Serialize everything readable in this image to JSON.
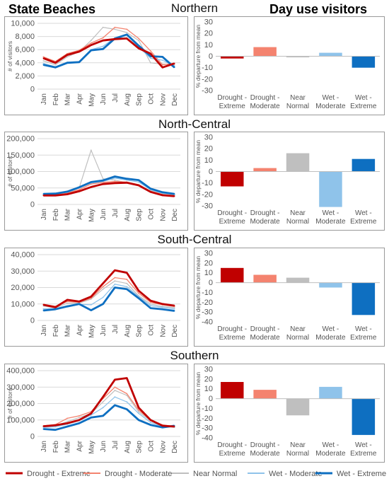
{
  "header": {
    "left_title": "State Beaches",
    "right_title": "Day use visitors"
  },
  "legend": [
    {
      "name": "Drought - Extreme",
      "color": "#c00000"
    },
    {
      "name": "Drought - Moderate",
      "color": "#f4836f"
    },
    {
      "name": "Near Normal",
      "color": "#bfbfbf"
    },
    {
      "name": "Wet -  Moderate",
      "color": "#8fc3ea"
    },
    {
      "name": "Wet - Extreme",
      "color": "#0e6fc1"
    }
  ],
  "chart_data": [
    {
      "type": "line",
      "region": "Northern",
      "title": "",
      "ylabel": "# of visitors",
      "categories": [
        "Jan",
        "Feb",
        "Mar",
        "Apr",
        "May",
        "Jun",
        "Jul",
        "Aug",
        "Sep",
        "Oct",
        "Nov",
        "Dec"
      ],
      "ylim": [
        0,
        10000
      ],
      "yticks": [
        0,
        2000,
        4000,
        6000,
        8000,
        10000
      ],
      "yticklabels": [
        "0",
        "2,000",
        "4,000",
        "6,000",
        "8,000",
        "10,000"
      ],
      "series": [
        {
          "name": "Drought - Extreme",
          "values": [
            4700,
            4000,
            5200,
            5700,
            6700,
            7400,
            7600,
            7700,
            6200,
            5400,
            3300,
            3900
          ]
        },
        {
          "name": "Drought - Moderate",
          "values": [
            4900,
            4200,
            5400,
            5900,
            7000,
            7800,
            9400,
            9100,
            7700,
            5800,
            3700,
            3900
          ]
        },
        {
          "name": "Near Normal",
          "values": [
            4300,
            3700,
            4900,
            5700,
            7400,
            9400,
            9100,
            8600,
            7400,
            4000,
            3800,
            3700
          ]
        },
        {
          "name": "Wet -  Moderate",
          "values": [
            3900,
            3400,
            4100,
            4200,
            6000,
            6500,
            7800,
            7800,
            6400,
            4700,
            4400,
            3500
          ]
        },
        {
          "name": "Wet - Extreme",
          "values": [
            3700,
            3300,
            4000,
            4100,
            5900,
            6100,
            7700,
            8300,
            6600,
            5000,
            4900,
            3300
          ]
        }
      ]
    },
    {
      "type": "bar",
      "region": "Northern",
      "title": "",
      "ylabel": "% departure from mean",
      "categories": [
        "Drought - Extreme",
        "Drought - Moderate",
        "Near Normal",
        "Wet - Moderate",
        "Wet - Extreme"
      ],
      "category_lines": [
        [
          "Drought -",
          "Extreme"
        ],
        [
          "Drought -",
          "Moderate"
        ],
        [
          "Near",
          "Normal"
        ],
        [
          "Wet -",
          "Moderate"
        ],
        [
          "Wet -",
          "Extreme"
        ]
      ],
      "values": [
        -2,
        8,
        -1,
        3,
        -10
      ],
      "ylim": [
        -30,
        30
      ],
      "yticks": [
        -30,
        -20,
        -10,
        0,
        10,
        20,
        30
      ]
    },
    {
      "type": "line",
      "region": "North-Central",
      "title": "",
      "ylabel": "# of visitors",
      "categories": [
        "Jan",
        "Feb",
        "Mar",
        "Apr",
        "May",
        "Jun",
        "Jul",
        "Aug",
        "Sep",
        "Oct",
        "Nov",
        "Dec"
      ],
      "ylim": [
        0,
        200000
      ],
      "yticks": [
        0,
        50000,
        100000,
        150000,
        200000
      ],
      "yticklabels": [
        "0",
        "50,000",
        "100,000",
        "150,000",
        "200,000"
      ],
      "series": [
        {
          "name": "Drought - Extreme",
          "values": [
            27000,
            27000,
            31000,
            40000,
            53000,
            62000,
            65000,
            66000,
            58000,
            38000,
            28000,
            25000
          ]
        },
        {
          "name": "Drought - Moderate",
          "values": [
            29000,
            29000,
            34000,
            45000,
            62000,
            67000,
            70000,
            68000,
            60000,
            40000,
            30000,
            27000
          ]
        },
        {
          "name": "Near Normal",
          "values": [
            28000,
            30000,
            34000,
            50000,
            165000,
            78000,
            74000,
            66000,
            58000,
            42000,
            31000,
            28000
          ]
        },
        {
          "name": "Wet -  Moderate",
          "values": [
            30000,
            32000,
            37000,
            50000,
            65000,
            70000,
            80000,
            74000,
            68000,
            45000,
            34000,
            30000
          ]
        },
        {
          "name": "Wet - Extreme",
          "values": [
            32000,
            33000,
            39000,
            52000,
            68000,
            73000,
            85000,
            78000,
            74000,
            48000,
            37000,
            32000
          ]
        }
      ]
    },
    {
      "type": "bar",
      "region": "North-Central",
      "title": "",
      "ylabel": "% departure from mean",
      "categories": [
        "Drought - Extreme",
        "Drought - Moderate",
        "Near Normal",
        "Wet - Moderate",
        "Wet - Extreme"
      ],
      "category_lines": [
        [
          "Drought -",
          "Extreme"
        ],
        [
          "Drought -",
          "Moderate"
        ],
        [
          "Near",
          "Normal"
        ],
        [
          "Wet -",
          "Moderate"
        ],
        [
          "Wet -",
          "Extreme"
        ]
      ],
      "values": [
        -13,
        3,
        16,
        -31,
        11
      ],
      "ylim": [
        -30,
        30
      ],
      "yticks": [
        -30,
        -20,
        -10,
        0,
        10,
        20,
        30
      ]
    },
    {
      "type": "line",
      "region": "South-Central",
      "title": "",
      "ylabel": "",
      "categories": [
        "Jan",
        "Feb",
        "Mar",
        "Apr",
        "May",
        "Jun",
        "Jul",
        "Aug",
        "Sep",
        "Oct",
        "Nov",
        "Dec"
      ],
      "ylim": [
        0,
        40000
      ],
      "yticks": [
        0,
        10000,
        20000,
        30000,
        40000
      ],
      "yticklabels": [
        "0",
        "10,000",
        "20,000",
        "30,000",
        "40,000"
      ],
      "series": [
        {
          "name": "Drought - Extreme",
          "values": [
            9500,
            8000,
            12500,
            11500,
            14500,
            22500,
            30500,
            29000,
            18000,
            12000,
            10000,
            9000
          ]
        },
        {
          "name": "Drought - Moderate",
          "values": [
            9800,
            8600,
            11500,
            11000,
            13500,
            20500,
            26000,
            25000,
            16500,
            11000,
            9500,
            8500
          ]
        },
        {
          "name": "Near Normal",
          "values": [
            8800,
            7600,
            10500,
            10500,
            13000,
            19000,
            24000,
            22500,
            15000,
            10000,
            8500,
            7800
          ]
        },
        {
          "name": "Wet -  Moderate",
          "values": [
            7000,
            7200,
            9000,
            9800,
            9500,
            14000,
            22000,
            20500,
            14500,
            9000,
            8000,
            7000
          ]
        },
        {
          "name": "Wet - Extreme",
          "values": [
            6000,
            6800,
            8500,
            10000,
            6200,
            10000,
            20000,
            19000,
            13500,
            7500,
            6800,
            5800
          ]
        }
      ]
    },
    {
      "type": "bar",
      "region": "South-Central",
      "title": "",
      "ylabel": "% departure from mean",
      "categories": [
        "Drought - Extreme",
        "Drought - Moderate",
        "Near Normal",
        "Wet - Moderate",
        "Wet - Extreme"
      ],
      "category_lines": [
        [
          "Drought -",
          "Extreme"
        ],
        [
          "Drought -",
          "Moderate"
        ],
        [
          "Near",
          "Normal"
        ],
        [
          "Wet -",
          "Moderate"
        ],
        [
          "Wet -",
          "Extreme"
        ]
      ],
      "values": [
        15,
        8,
        5,
        -5,
        -33
      ],
      "ylim": [
        -40,
        30
      ],
      "yticks": [
        -40,
        -30,
        -20,
        -10,
        0,
        10,
        20,
        30
      ]
    },
    {
      "type": "line",
      "region": "Southern",
      "title": "",
      "ylabel": "# of visitors",
      "categories": [
        "Jan",
        "Feb",
        "Mar",
        "Apr",
        "May",
        "Jun",
        "Jul",
        "Aug",
        "Sep",
        "Oct",
        "Nov",
        "Dec"
      ],
      "ylim": [
        0,
        400000
      ],
      "yticks": [
        0,
        100000,
        200000,
        300000,
        400000
      ],
      "yticklabels": [
        "0",
        "100,000",
        "200,000",
        "300,000",
        "400,000"
      ],
      "series": [
        {
          "name": "Drought - Extreme",
          "values": [
            62000,
            68000,
            80000,
            100000,
            140000,
            240000,
            345000,
            355000,
            175000,
            100000,
            65000,
            60000
          ]
        },
        {
          "name": "Drought - Moderate",
          "values": [
            65000,
            72000,
            110000,
            125000,
            150000,
            230000,
            300000,
            260000,
            160000,
            100000,
            70000,
            60000
          ]
        },
        {
          "name": "Near Normal",
          "values": [
            60000,
            65000,
            90000,
            115000,
            140000,
            210000,
            280000,
            250000,
            150000,
            95000,
            60000,
            55000
          ]
        },
        {
          "name": "Wet -  Moderate",
          "values": [
            55000,
            58000,
            75000,
            95000,
            130000,
            175000,
            240000,
            210000,
            140000,
            85000,
            60000,
            58000
          ]
        },
        {
          "name": "Wet - Extreme",
          "values": [
            45000,
            40000,
            60000,
            80000,
            115000,
            125000,
            190000,
            165000,
            100000,
            70000,
            55000,
            65000
          ]
        }
      ]
    },
    {
      "type": "bar",
      "region": "Southern",
      "title": "",
      "ylabel": "% departure from mean",
      "categories": [
        "Drought - Extreme",
        "Drought - Moderate",
        "Near Normal",
        "Wet - Moderate",
        "Wet - Extreme"
      ],
      "category_lines": [
        [
          "Drought -",
          "Extreme"
        ],
        [
          "Drought -",
          "Moderate"
        ],
        [
          "Near",
          "Normal"
        ],
        [
          "Wet -",
          "Moderate"
        ],
        [
          "Wet -",
          "Extreme"
        ]
      ],
      "values": [
        17,
        9,
        -17,
        12,
        -37
      ],
      "ylim": [
        -40,
        30
      ],
      "yticks": [
        -40,
        -30,
        -20,
        -10,
        0,
        10,
        20,
        30
      ]
    }
  ]
}
